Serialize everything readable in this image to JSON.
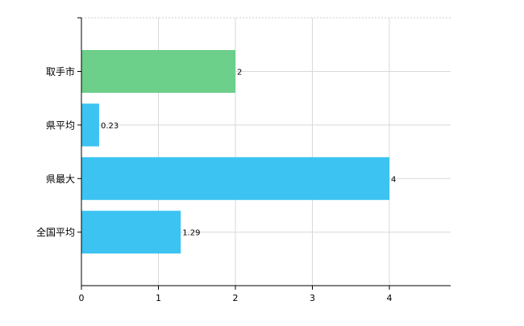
{
  "chart_data": {
    "type": "bar",
    "orientation": "horizontal",
    "categories": [
      "取手市",
      "県平均",
      "県最大",
      "全国平均"
    ],
    "values": [
      2,
      0.23,
      4,
      1.29
    ],
    "value_labels": [
      "2",
      "0.23",
      "4",
      "1.29"
    ],
    "colors": [
      "#6ccf8a",
      "#3cc3f2",
      "#3cc3f2",
      "#3cc3f2"
    ],
    "x_ticks": [
      "0",
      "1",
      "2",
      "3",
      "4"
    ],
    "xlim": [
      0,
      4.8
    ],
    "title": "",
    "xlabel": "",
    "ylabel": "",
    "grid": true,
    "legend": "none"
  }
}
